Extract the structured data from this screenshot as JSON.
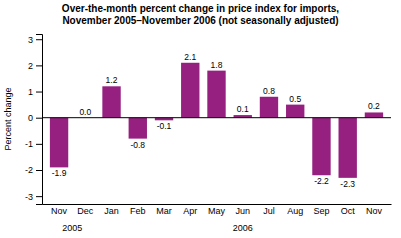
{
  "chart_data": {
    "type": "bar",
    "title": "Over-the-month percent change in price index for imports,",
    "subtitle": "November 2005–November 2006 (not seasonally adjusted)",
    "categories": [
      "Nov",
      "Dec",
      "Jan",
      "Feb",
      "Mar",
      "Apr",
      "May",
      "Jun",
      "Jul",
      "Aug",
      "Sep",
      "Oct",
      "Nov"
    ],
    "values": [
      -1.9,
      0.0,
      1.2,
      -0.8,
      -0.1,
      2.1,
      1.8,
      0.1,
      0.8,
      0.5,
      -2.2,
      -2.3,
      0.2
    ],
    "value_labels": [
      "-1.9",
      "0.0",
      "1.2",
      "-0.8",
      "-0.1",
      "2.1",
      "1.8",
      "0.1",
      "0.8",
      "0.5",
      "-2.2",
      "-2.3",
      "0.2"
    ],
    "data_labels": true,
    "color": "#952080",
    "y_label": "Percent change",
    "ylim": [
      -3.3,
      3.2
    ],
    "yticks": [
      -3,
      -2,
      -1,
      0,
      1,
      2,
      3
    ],
    "grid": false,
    "annotations": [
      {
        "text": "2005",
        "x": 0.5
      },
      {
        "text": "2006",
        "x": 7.0
      }
    ]
  }
}
